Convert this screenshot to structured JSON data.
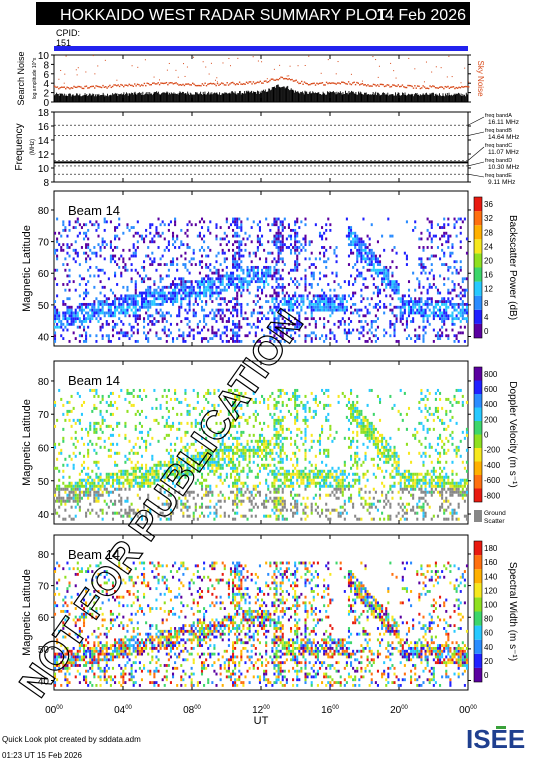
{
  "header": {
    "title": "HOKKAIDO WEST RADAR SUMMARY PLOT",
    "date": "14 Feb 2026",
    "cpid_label": "CPID:",
    "cpid_value": "151"
  },
  "colors": {
    "header_bg": "#000000",
    "cpid_bar": "#2222ee",
    "noise_points": "#d84a1a",
    "freq_line": "#000000",
    "watermark": "#000000"
  },
  "watermark": "NOT FOR PUBLICATION",
  "footer": {
    "credit": "Quick Look plot created by sddata.adm",
    "timestamp": "01:23 UT 15 Feb 2026",
    "logo_text": "ISEE"
  },
  "chart_data": [
    {
      "type": "scatter",
      "id": "noise",
      "ylabel": "Search Noise",
      "ylabel_sub": "log amplitude 10^x",
      "right_label": "Sky Noise",
      "ylim": [
        0,
        10
      ],
      "yticks": [
        0,
        2,
        4,
        6,
        8,
        10
      ],
      "sky_noise": {
        "x": [
          0,
          1,
          2,
          3,
          4,
          5,
          6,
          7,
          8,
          9,
          10,
          11,
          12,
          12.5,
          13,
          13.5,
          14,
          14.5,
          15,
          16,
          17,
          18,
          19,
          20,
          21,
          22,
          23,
          24
        ],
        "y": [
          3.3,
          3.2,
          3.3,
          3.4,
          3.6,
          3.8,
          4.0,
          4.0,
          3.9,
          3.9,
          4.0,
          4.1,
          4.3,
          4.8,
          5.2,
          4.9,
          4.5,
          4.1,
          4.0,
          4.1,
          4.2,
          3.9,
          3.6,
          3.5,
          3.3,
          3.3,
          3.2,
          3.2
        ]
      },
      "search_noise": {
        "x": [
          0,
          1,
          2,
          3,
          4,
          5,
          6,
          7,
          8,
          9,
          10,
          11,
          12,
          12.5,
          13,
          13.5,
          14,
          14.5,
          15,
          16,
          17,
          18,
          19,
          20,
          21,
          22,
          23,
          24
        ],
        "y": [
          1.6,
          1.5,
          1.5,
          1.6,
          1.7,
          1.8,
          1.9,
          1.9,
          1.9,
          1.8,
          1.9,
          2.0,
          2.1,
          2.6,
          3.5,
          3.2,
          2.2,
          2.0,
          1.9,
          1.9,
          2.0,
          1.9,
          1.8,
          1.7,
          1.6,
          1.6,
          1.6,
          1.6
        ]
      }
    },
    {
      "type": "line",
      "id": "frequency",
      "ylabel": "Frequency",
      "ylabel_sub": "(MHz)",
      "ylim": [
        8,
        18
      ],
      "yticks": [
        8,
        10,
        12,
        14,
        16,
        18
      ],
      "x": [
        0,
        24
      ],
      "operating_frequency": 10.8,
      "freq_bands": [
        {
          "name": "freq bandA",
          "value": "16.11 MHz",
          "mhz": 16.11
        },
        {
          "name": "freq bandB",
          "value": "14.64 MHz",
          "mhz": 14.64
        },
        {
          "name": "freq bandC",
          "value": "11.07 MHz",
          "mhz": 11.07
        },
        {
          "name": "freq bandD",
          "value": "10.30 MHz",
          "mhz": 10.3
        },
        {
          "name": "freq bandE",
          "value": "9.11 MHz",
          "mhz": 9.11
        }
      ]
    },
    {
      "type": "heatmap",
      "id": "power",
      "beam": "Beam 14",
      "ylabel": "Magnetic Latitude",
      "ylim": [
        37,
        86
      ],
      "yticks": [
        40,
        50,
        60,
        70,
        80
      ],
      "colorbar_label": "Backscatter Power (dB)",
      "colorbar_ticks": [
        "0",
        "4",
        "8",
        "12",
        "16",
        "20",
        "24",
        "28",
        "32",
        "36"
      ],
      "colorbar_colors": [
        "#5a00a0",
        "#2020ff",
        "#2a8cff",
        "#27c9ff",
        "#3dd66b",
        "#8fe020",
        "#f6e81e",
        "#ffb000",
        "#ff7010",
        "#e81a10"
      ]
    },
    {
      "type": "heatmap",
      "id": "velocity",
      "beam": "Beam 14",
      "ylabel": "Magnetic Latitude",
      "ylim": [
        37,
        86
      ],
      "yticks": [
        40,
        50,
        60,
        70,
        80
      ],
      "colorbar_label": "Doppler Velocity (m s⁻¹)",
      "colorbar_ticks": [
        "-800",
        "-600",
        "-400",
        "-200",
        "0",
        "200",
        "400",
        "600",
        "800"
      ],
      "colorbar_colors": [
        "#e81a10",
        "#ff7010",
        "#ffb000",
        "#f6e81e",
        "#8fe020",
        "#3dd66b",
        "#27c9ff",
        "#2a8cff",
        "#2020ff",
        "#5a00a0"
      ],
      "ground_scatter_label": "Ground Scatter",
      "ground_scatter_color": "#888888"
    },
    {
      "type": "heatmap",
      "id": "width",
      "beam": "Beam 14",
      "ylabel": "Magnetic Latitude",
      "ylim": [
        37,
        86
      ],
      "yticks": [
        40,
        50,
        60,
        70,
        80
      ],
      "colorbar_label": "Spectral Width (m s⁻¹)",
      "colorbar_ticks": [
        "0",
        "20",
        "40",
        "60",
        "80",
        "100",
        "120",
        "140",
        "160",
        "180"
      ],
      "colorbar_colors": [
        "#5a00a0",
        "#2020ff",
        "#2a8cff",
        "#27c9ff",
        "#3dd66b",
        "#8fe020",
        "#f6e81e",
        "#ffb000",
        "#ff7010",
        "#e81a10"
      ]
    }
  ],
  "xaxis": {
    "label": "UT",
    "range": [
      0,
      24
    ],
    "ticks": [
      {
        "h": "00",
        "m": "00",
        "value": 0
      },
      {
        "h": "04",
        "m": "00",
        "value": 4
      },
      {
        "h": "08",
        "m": "00",
        "value": 8
      },
      {
        "h": "12",
        "m": "00",
        "value": 12
      },
      {
        "h": "16",
        "m": "00",
        "value": 16
      },
      {
        "h": "20",
        "m": "00",
        "value": 20
      },
      {
        "h": "00",
        "m": "00",
        "value": 24
      }
    ]
  }
}
